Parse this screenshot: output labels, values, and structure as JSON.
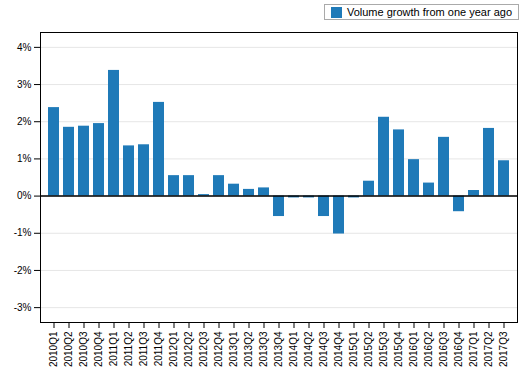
{
  "chart_data": {
    "type": "bar",
    "categories": [
      "2010Q1",
      "2010Q2",
      "2010Q3",
      "2010Q4",
      "2011Q1",
      "2011Q2",
      "2011Q3",
      "2011Q4",
      "2012Q1",
      "2012Q2",
      "2012Q3",
      "2012Q4",
      "2013Q1",
      "2013Q2",
      "2013Q3",
      "2013Q4",
      "2014Q1",
      "2014Q2",
      "2014Q3",
      "2014Q4",
      "2015Q1",
      "2015Q2",
      "2015Q3",
      "2015Q4",
      "2016Q1",
      "2016Q2",
      "2016Q3",
      "2016Q4",
      "2017Q1",
      "2017Q2",
      "2017Q3"
    ],
    "series": [
      {
        "name": "Volume growth from one year ago",
        "color": "#1f7ab8",
        "values": [
          2.38,
          1.85,
          1.88,
          1.95,
          3.38,
          1.35,
          1.38,
          2.52,
          0.55,
          0.55,
          0.04,
          0.55,
          0.32,
          0.18,
          0.22,
          -0.55,
          -0.05,
          -0.05,
          -0.55,
          -1.02,
          -0.05,
          0.4,
          2.12,
          1.78,
          0.98,
          0.35,
          1.58,
          -0.42,
          0.15,
          1.82,
          0.95
        ]
      }
    ],
    "ylim": [
      -3.4,
      4.4
    ],
    "yticks": [
      {
        "value": -3,
        "label": "-3%"
      },
      {
        "value": -2,
        "label": "-2%"
      },
      {
        "value": -1,
        "label": "-1%"
      },
      {
        "value": 0,
        "label": "0%"
      },
      {
        "value": 1,
        "label": "1%"
      },
      {
        "value": 2,
        "label": "2%"
      },
      {
        "value": 3,
        "label": "3%"
      },
      {
        "value": 4,
        "label": "4%"
      }
    ],
    "grid": true,
    "legend": "upper right"
  }
}
